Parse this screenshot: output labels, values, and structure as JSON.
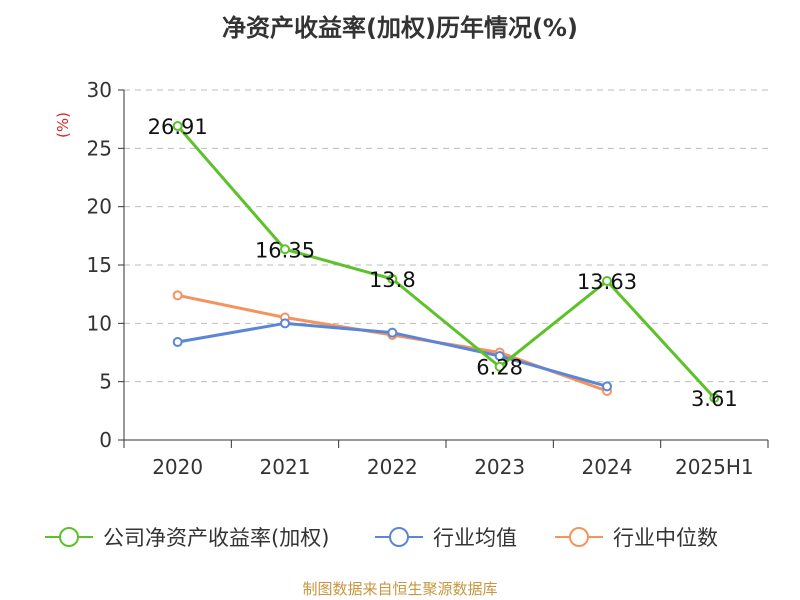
{
  "chart_data": {
    "type": "line",
    "title": "净资产收益率(加权)历年情况(%)",
    "ylabel": "(%)",
    "xlabel": "",
    "categories": [
      "2020",
      "2021",
      "2022",
      "2023",
      "2024",
      "2025H1"
    ],
    "ylim": [
      0,
      30
    ],
    "yticks": [
      0,
      5,
      10,
      15,
      20,
      25,
      30
    ],
    "grid": true,
    "legend_position": "bottom",
    "series": [
      {
        "name": "公司净资产收益率(加权)",
        "color": "#5cc22a",
        "values": [
          26.91,
          16.35,
          13.8,
          6.28,
          13.63,
          3.61
        ],
        "labels": [
          "26.91",
          "16.35",
          "13.8",
          "6.28",
          "13.63",
          "3.61"
        ]
      },
      {
        "name": "行业均值",
        "color": "#5b86d8",
        "values": [
          8.4,
          10.0,
          9.2,
          7.2,
          4.6,
          null
        ]
      },
      {
        "name": "行业中位数",
        "color": "#f5935f",
        "values": [
          12.4,
          10.5,
          9.0,
          7.5,
          4.2,
          null
        ]
      }
    ]
  },
  "source": "制图数据来自恒生聚源数据库"
}
